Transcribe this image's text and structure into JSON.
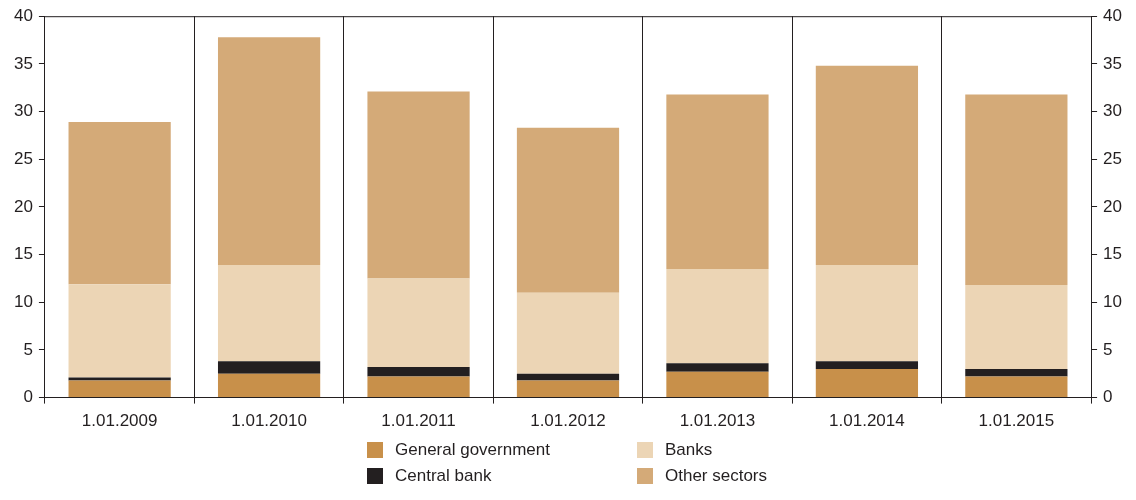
{
  "chart_data": {
    "type": "bar",
    "stacked": true,
    "categories": [
      "1.01.2009",
      "1.01.2010",
      "1.01.2011",
      "1.01.2012",
      "1.01.2013",
      "1.01.2014",
      "1.01.2015"
    ],
    "series": [
      {
        "name": "General government",
        "color": "#c8904a",
        "values": [
          1.8,
          2.5,
          2.2,
          1.8,
          2.7,
          3.0,
          2.2
        ]
      },
      {
        "name": "Central bank",
        "color": "#231f20",
        "values": [
          0.3,
          1.3,
          1.0,
          0.7,
          0.9,
          0.8,
          0.8
        ]
      },
      {
        "name": "Banks",
        "color": "#ecd5b5",
        "values": [
          9.8,
          10.1,
          9.3,
          8.5,
          9.9,
          10.1,
          8.8
        ]
      },
      {
        "name": "Other sectors",
        "color": "#d4aa78",
        "values": [
          17.0,
          23.9,
          19.6,
          17.3,
          18.3,
          20.9,
          20.0
        ]
      }
    ],
    "ylim": [
      0,
      40
    ],
    "yticks": [
      0,
      5,
      10,
      15,
      20,
      25,
      30,
      35,
      40
    ],
    "y2lim": [
      0,
      40
    ],
    "y2ticks": [
      0,
      5,
      10,
      15,
      20,
      25,
      30,
      35,
      40
    ],
    "grid": "x",
    "legend": "bottom"
  }
}
